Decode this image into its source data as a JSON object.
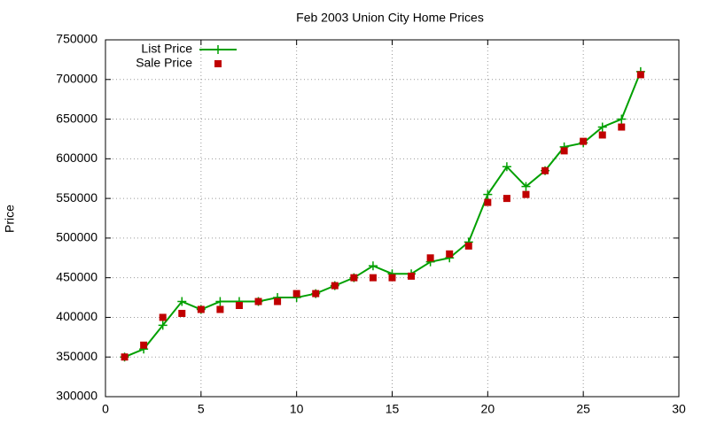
{
  "chart_data": {
    "type": "line",
    "title": "Feb 2003 Union City Home Prices",
    "y_label": "Price",
    "x": [
      1,
      2,
      3,
      4,
      5,
      6,
      7,
      8,
      9,
      10,
      11,
      12,
      13,
      14,
      15,
      16,
      17,
      18,
      19,
      20,
      21,
      22,
      23,
      24,
      25,
      26,
      27,
      28
    ],
    "series": [
      {
        "name": "List Price",
        "color": "#00a000",
        "style": "linespoints",
        "values": [
          350000,
          360000,
          390000,
          420000,
          410000,
          420000,
          420000,
          420000,
          425000,
          425000,
          430000,
          440000,
          450000,
          465000,
          455000,
          455000,
          470000,
          475000,
          495000,
          555000,
          590000,
          565000,
          585000,
          615000,
          620000,
          640000,
          650000,
          710000
        ]
      },
      {
        "name": "Sale Price",
        "color": "#c00000",
        "style": "points",
        "values": [
          350000,
          365000,
          400000,
          405000,
          410000,
          410000,
          415000,
          420000,
          420000,
          430000,
          430000,
          440000,
          450000,
          450000,
          450000,
          452000,
          475000,
          480000,
          490000,
          545000,
          550000,
          555000,
          585000,
          610000,
          622000,
          630000,
          640000,
          706000
        ]
      }
    ],
    "xlim": [
      0,
      30
    ],
    "xticks": [
      0,
      5,
      10,
      15,
      20,
      25,
      30
    ],
    "ylim": [
      300000,
      750000
    ],
    "yticks": [
      300000,
      350000,
      400000,
      450000,
      500000,
      550000,
      600000,
      650000,
      700000,
      750000
    ],
    "grid": true,
    "legend": "top-left"
  }
}
